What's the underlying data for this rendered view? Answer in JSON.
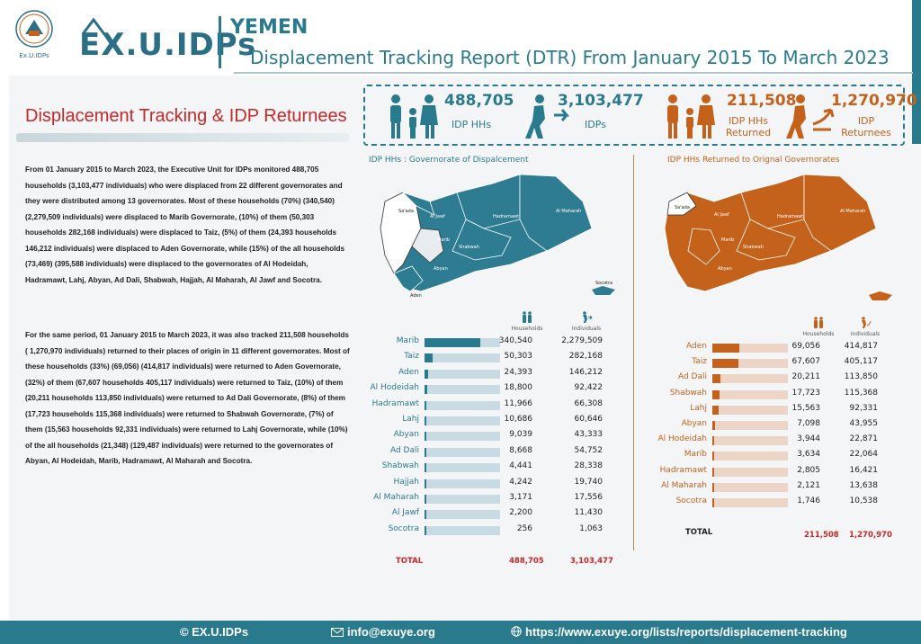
{
  "header": {
    "seal_text": "Ex.U.IDPs",
    "logo_text": "EX.U.IDPs",
    "country": "YEMEN",
    "title": "Displacement Tracking Report (DTR) From January 2015 To March 2023"
  },
  "section_title": "Displacement Tracking & IDP Returnees",
  "paragraph1": "From 01 January 2015 to March 2023, the Executive Unit for IDPs monitored 488,705 households (3,103,477 individuals) who were displaced from 22 different governorates and they were distributed among 13 governorates. Most of these households (70%) (340,540) (2,279,509 individuals) were displaced to Marib Governorate, (10%) of them (50,303 households 282,168 individuals) were displaced to Taiz, (5%) of them (24,393 households 146,212 individuals) were displaced to Aden Governorate, while (15%) of the all households (73,469) (395,588 individuals) were displaced to the governorates of Al Hodeidah, Hadramawt, Lahj, Abyan, Ad Dali, Shabwah, Hajjah, Al Maharah, Al Jawf and Socotra.",
  "paragraph2": "For the same period, 01 January 2015 to March 2023, it was also tracked 211,508 households ( 1,270,970 individuals) returned to their places of origin in 11 different governorates. Most of these households (33%) (69,056) (414,817 individuals) were returned to Aden Governorate, (32%) of them (67,607 households 405,117 individuals) were returned to Taiz, (10%) of them (20,211 households 113,850 individuals) were returned to Ad Dali Governorate, (8%) of them (17,723 households 115,368 individuals) were returned to Shabwah Governorate, (7%) of them (15,563 households 92,331 individuals) were returned to Lahj Governorate, while (10%) of the all households (21,348) (129,487 individuals) were returned to the governorates of Abyan, Al Hodeidah, Marib, Hadramawt, Al Maharah and Socotra.",
  "kpis": [
    {
      "value": "488,705",
      "label": "IDP HHs",
      "color": "#2a7a8e"
    },
    {
      "value": "3,103,477",
      "label": "IDPs",
      "color": "#2a7a8e"
    },
    {
      "value": "211,508",
      "label": "IDP HHs Returned",
      "color": "#c4611a"
    },
    {
      "value": "1,270,970",
      "label": "IDP Returnees",
      "color": "#c4611a"
    }
  ],
  "map_left_title": "IDP HHs : Governorate of Dispalcement",
  "map_right_title": "IDP HHs Returned to Orignal Governorates",
  "col_households": "Households",
  "col_individuals": "Individuals",
  "map_labels": {
    "saada": "Sa'ada",
    "al_jawf": "Al Jawf",
    "hadramawt": "Hadramawt",
    "al_maharah": "Al Maharah",
    "marib": "Marib",
    "shabwah": "Shabwah",
    "abyan": "Abyan",
    "aden": "Aden",
    "socotra": "Socotra"
  },
  "total_label": "TOTAL",
  "chart_data": [
    {
      "type": "bar",
      "title": "IDP HHs : Governorate of Dispalcement",
      "categories": [
        "Marib",
        "Taiz",
        "Aden",
        "Al Hodeidah",
        "Hadramawt",
        "Lahj",
        "Abyan",
        "Ad Dali",
        "Shabwah",
        "Hajjah",
        "Al Maharah",
        "Al Jawf",
        "Socotra"
      ],
      "households": [
        "340,540",
        "50,303",
        "24,393",
        "18,800",
        "11,966",
        "10,686",
        "9,039",
        "8,668",
        "4,441",
        "4,242",
        "3,171",
        "2,200",
        "256"
      ],
      "individuals": [
        "2,279,509",
        "282,168",
        "146,212",
        "92,422",
        "66,308",
        "60,646",
        "43,333",
        "54,752",
        "28,338",
        "19,740",
        "17,556",
        "11,430",
        "1,063"
      ],
      "values": [
        340540,
        50303,
        24393,
        18800,
        11966,
        10686,
        9039,
        8668,
        4441,
        4242,
        3171,
        2200,
        256
      ],
      "total_households": "488,705",
      "total_individuals": "3,103,477",
      "color": "#2a7a8e",
      "track_color": "#c8dbe2"
    },
    {
      "type": "bar",
      "title": "IDP HHs Returned to Orignal Governorates",
      "categories": [
        "Aden",
        "Taiz",
        "Ad Dali",
        "Shabwah",
        "Lahj",
        "Abyan",
        "Al Hodeidah",
        "Marib",
        "Hadramawt",
        "Al Maharah",
        "Socotra"
      ],
      "households": [
        "69,056",
        "67,607",
        "20,211",
        "17,723",
        "15,563",
        "7,098",
        "3,944",
        "3,634",
        "2,805",
        "2,121",
        "1,746"
      ],
      "individuals": [
        "414,817",
        "405,117",
        "113,850",
        "115,368",
        "92,331",
        "43,955",
        "22,871",
        "22,064",
        "16,421",
        "13,638",
        "10,538"
      ],
      "values": [
        69056,
        67607,
        20211,
        17723,
        15563,
        7098,
        3944,
        3634,
        2805,
        2121,
        1746
      ],
      "total_households": "211,508",
      "total_individuals": "1,270,970",
      "color": "#c4611a",
      "track_color": "#ecd5c7"
    }
  ],
  "footer": {
    "brand": "© EX.U.IDPs",
    "email": "info@exuye.org",
    "url": "https://www.exuye.org/lists/reports/displacement-tracking"
  }
}
